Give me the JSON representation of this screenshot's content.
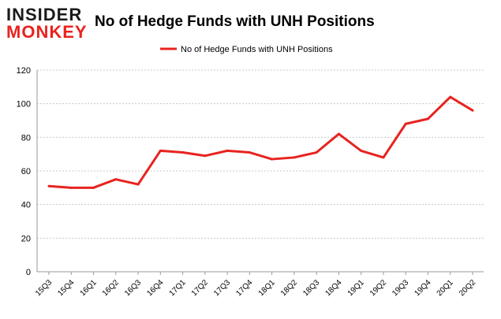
{
  "logo": {
    "top": "INSIDER",
    "bottom": "MONKEY"
  },
  "chart_data": {
    "type": "line",
    "title": "No of Hedge Funds with UNH Positions",
    "xlabel": "",
    "ylabel": "",
    "categories": [
      "15Q3",
      "15Q4",
      "16Q1",
      "16Q2",
      "16Q3",
      "16Q4",
      "17Q1",
      "17Q2",
      "17Q3",
      "17Q4",
      "18Q1",
      "18Q2",
      "18Q3",
      "18Q4",
      "19Q1",
      "19Q2",
      "19Q3",
      "19Q4",
      "20Q1",
      "20Q2"
    ],
    "series": [
      {
        "name": "No of Hedge Funds with UNH Positions",
        "values": [
          51,
          50,
          50,
          55,
          52,
          72,
          71,
          69,
          72,
          71,
          67,
          68,
          71,
          82,
          72,
          68,
          88,
          91,
          104,
          96
        ]
      }
    ],
    "ylim": [
      0,
      120
    ],
    "yticks": [
      0,
      20,
      40,
      60,
      80,
      100,
      120
    ],
    "grid": "horizontal dashed",
    "legend": "top-center",
    "line_color": "#e8231f"
  }
}
